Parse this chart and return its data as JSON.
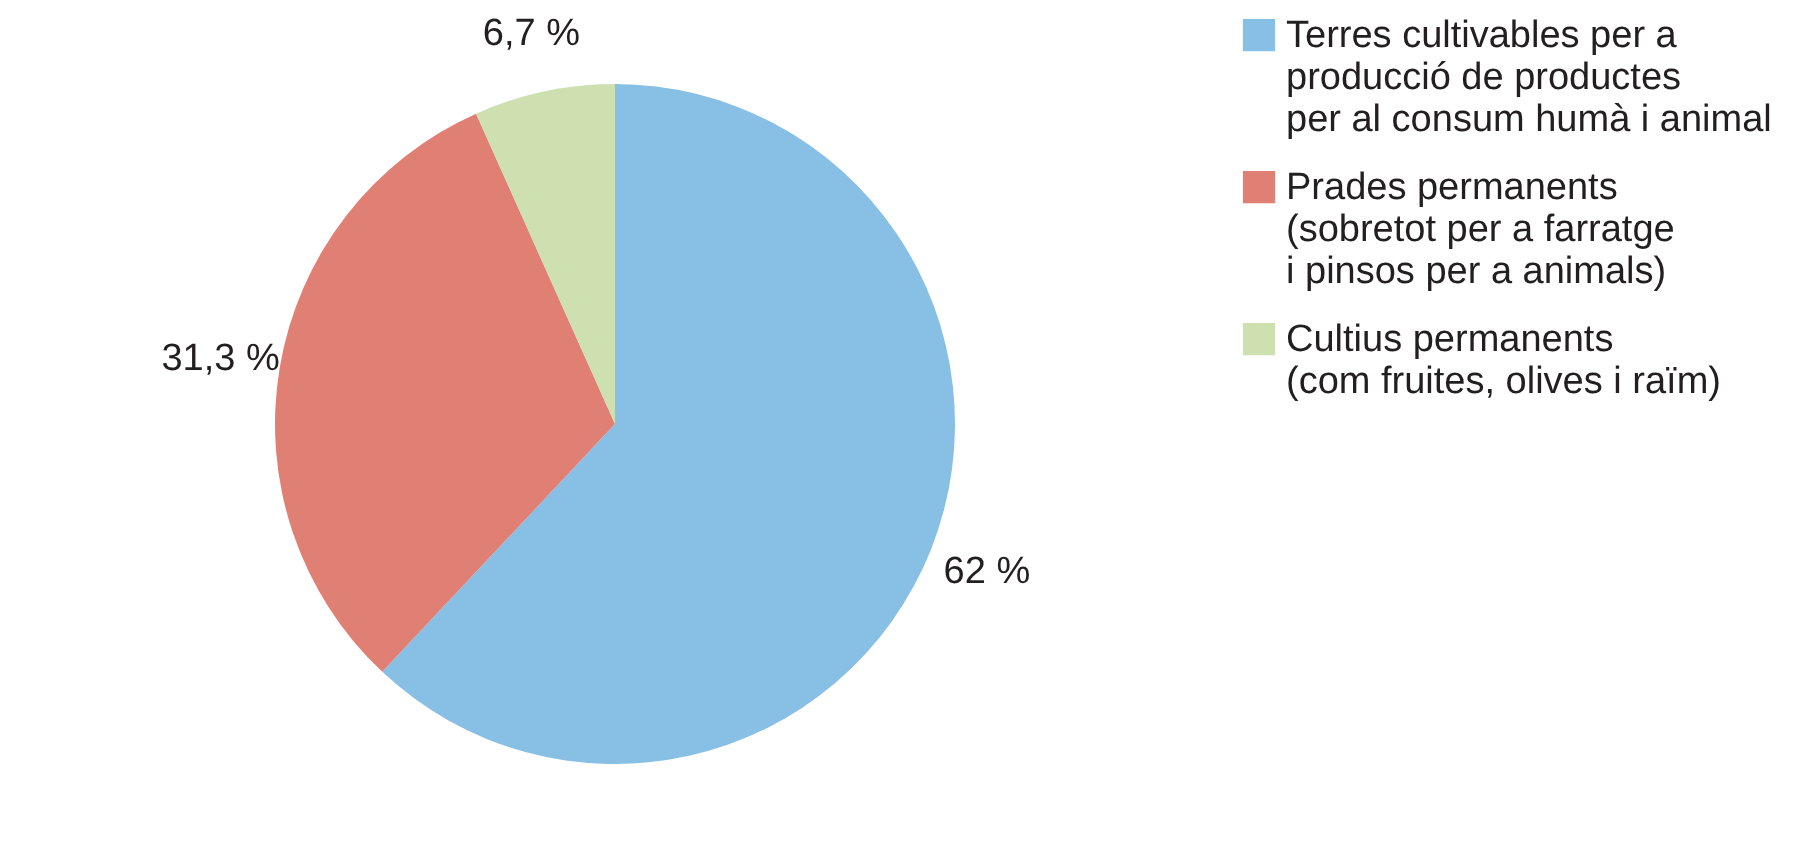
{
  "chart_data": {
    "type": "pie",
    "categories": [
      "Terres cultivables per a\nproducció de productes\nper al consum humà i animal",
      "Prades permanents\n(sobretot per a farratge\ni pinsos per a animals)",
      "Cultius permanents\n(com fruites, olives i raïm)"
    ],
    "values": [
      62,
      31.3,
      6.7
    ],
    "colors": [
      "#88bfe5",
      "#e07f74",
      "#cfe0b0"
    ],
    "value_labels": [
      "62 %",
      "31,3 %",
      "6,7 %"
    ],
    "legend": "right"
  }
}
